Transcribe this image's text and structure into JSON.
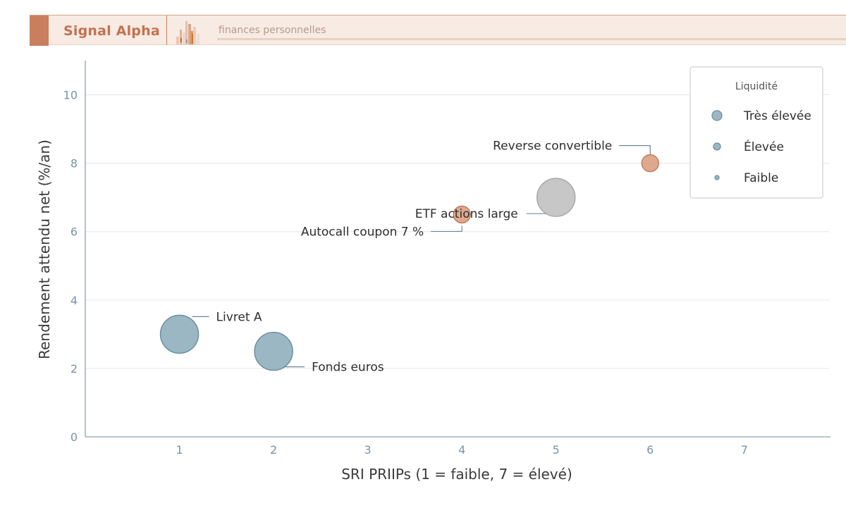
{
  "header": {
    "brand": "Signal Alpha",
    "subtitle": "finances personnelles"
  },
  "colors": {
    "accent": "#c97f5e",
    "brand_text": "#c4714e",
    "header_bg": "#f7ebe4",
    "axis": "#7d98a8",
    "tick_text": "#7a93a5"
  },
  "chart_data": {
    "type": "scatter",
    "title": "",
    "xlabel": "SRI PRIIPs (1 = faible, 7 = élevé)",
    "ylabel": "Rendement attendu net (%/an)",
    "xlim": [
      0,
      7.9
    ],
    "ylim": [
      0,
      11
    ],
    "xticks": [
      1,
      2,
      3,
      4,
      5,
      6,
      7
    ],
    "yticks": [
      0,
      2,
      4,
      6,
      8,
      10
    ],
    "grid": "horizontal",
    "legend": {
      "title": "Liquidité",
      "position": "top-right",
      "entries": [
        {
          "label": "Très élevée",
          "size": 3
        },
        {
          "label": "Élevée",
          "size": 2
        },
        {
          "label": "Faible",
          "size": 1
        }
      ]
    },
    "points": [
      {
        "label": "Livret A",
        "x": 1,
        "y": 3,
        "size": 3,
        "color": "#8aaab8"
      },
      {
        "label": "Fonds euros",
        "x": 2,
        "y": 2.5,
        "size": 3,
        "color": "#8aaab8"
      },
      {
        "label": "Autocall coupon 7 %",
        "x": 4,
        "y": 6.5,
        "size": 1,
        "color": "#d99a7c"
      },
      {
        "label": "ETF actions large",
        "x": 5,
        "y": 7,
        "size": 3,
        "color": "#bdbdbd"
      },
      {
        "label": "Reverse convertible",
        "x": 6,
        "y": 8,
        "size": 1,
        "color": "#d99a7c"
      }
    ]
  }
}
